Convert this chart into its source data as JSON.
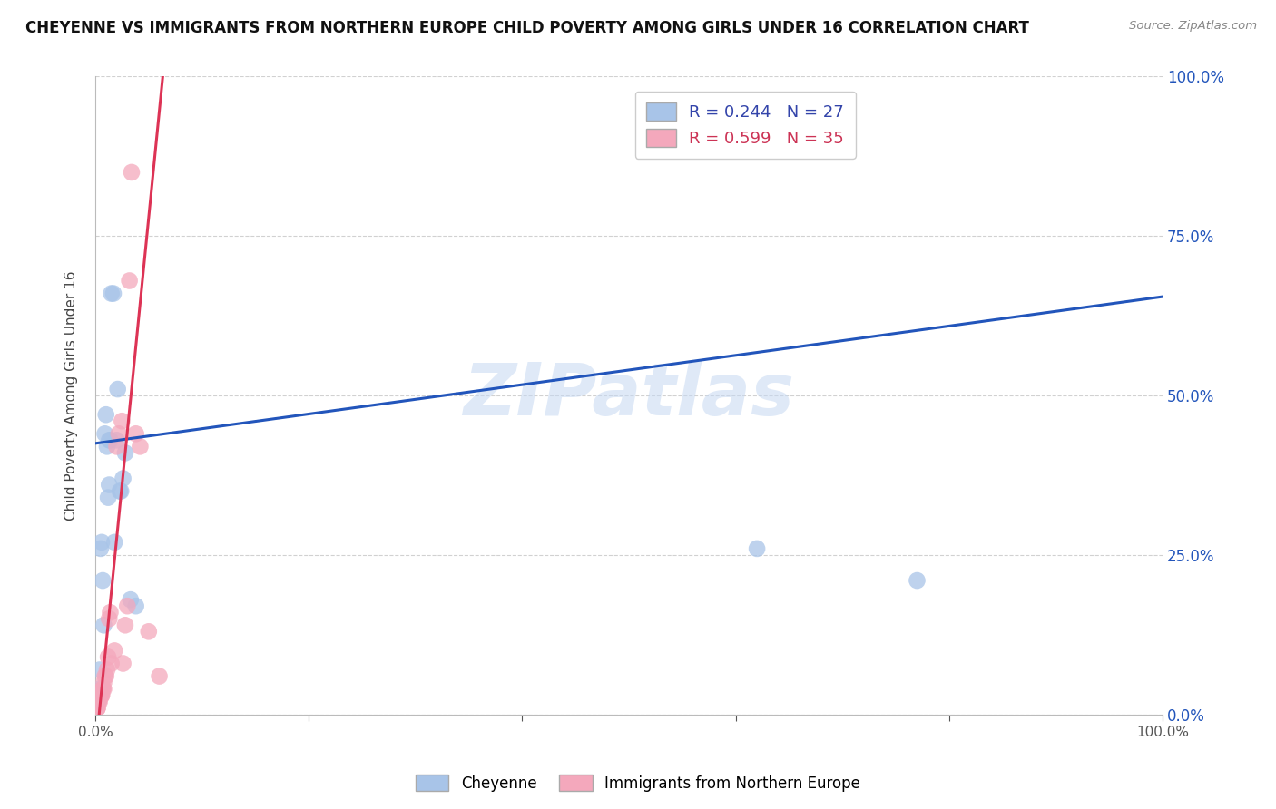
{
  "title": "CHEYENNE VS IMMIGRANTS FROM NORTHERN EUROPE CHILD POVERTY AMONG GIRLS UNDER 16 CORRELATION CHART",
  "source": "Source: ZipAtlas.com",
  "ylabel": "Child Poverty Among Girls Under 16",
  "watermark": "ZIPatlas",
  "legend_blue_r": "R = 0.244",
  "legend_blue_n": "N = 27",
  "legend_pink_r": "R = 0.599",
  "legend_pink_n": "N = 35",
  "blue_label": "Cheyenne",
  "pink_label": "Immigrants from Northern Europe",
  "blue_color": "#a8c4e8",
  "pink_color": "#f4a8bc",
  "blue_line_color": "#2255bb",
  "pink_line_color": "#dd3355",
  "xlim": [
    0,
    1.0
  ],
  "ylim": [
    0,
    1.0
  ],
  "blue_x": [
    0.003,
    0.004,
    0.004,
    0.005,
    0.006,
    0.007,
    0.008,
    0.009,
    0.01,
    0.011,
    0.012,
    0.013,
    0.013,
    0.014,
    0.015,
    0.017,
    0.018,
    0.02,
    0.021,
    0.023,
    0.024,
    0.026,
    0.028,
    0.033,
    0.038,
    0.62,
    0.77
  ],
  "blue_y": [
    0.02,
    0.04,
    0.07,
    0.26,
    0.27,
    0.21,
    0.14,
    0.44,
    0.47,
    0.42,
    0.34,
    0.36,
    0.43,
    0.43,
    0.66,
    0.66,
    0.27,
    0.43,
    0.51,
    0.35,
    0.35,
    0.37,
    0.41,
    0.18,
    0.17,
    0.26,
    0.21
  ],
  "pink_x": [
    0.002,
    0.002,
    0.002,
    0.003,
    0.003,
    0.004,
    0.004,
    0.005,
    0.005,
    0.006,
    0.006,
    0.007,
    0.007,
    0.008,
    0.008,
    0.009,
    0.01,
    0.011,
    0.012,
    0.013,
    0.014,
    0.015,
    0.018,
    0.02,
    0.022,
    0.025,
    0.026,
    0.028,
    0.03,
    0.032,
    0.034,
    0.038,
    0.042,
    0.05,
    0.06
  ],
  "pink_y": [
    0.01,
    0.01,
    0.01,
    0.02,
    0.02,
    0.02,
    0.03,
    0.03,
    0.03,
    0.03,
    0.03,
    0.04,
    0.04,
    0.04,
    0.05,
    0.06,
    0.06,
    0.07,
    0.09,
    0.15,
    0.16,
    0.08,
    0.1,
    0.42,
    0.44,
    0.46,
    0.08,
    0.14,
    0.17,
    0.68,
    0.85,
    0.44,
    0.42,
    0.13,
    0.06
  ]
}
